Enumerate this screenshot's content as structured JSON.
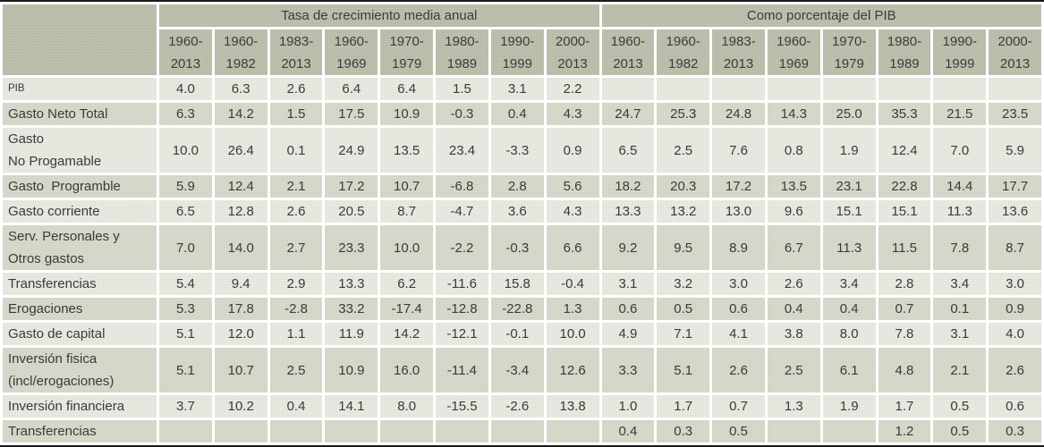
{
  "colors": {
    "header_background": "#b6b7a4",
    "row_light": "#ebece4",
    "row_dark": "#d9dbce",
    "grid_lines": "#ffffff",
    "outer_border": "#1a1a1a",
    "text": "#3a3a3a"
  },
  "chart_data": {
    "type": "table",
    "column_group_headers": [
      "Tasa de crecimiento media anual",
      "Como porcentaje del PIB"
    ],
    "period_columns": [
      {
        "line1": "1960-",
        "line2": "2013"
      },
      {
        "line1": "1960-",
        "line2": "1982"
      },
      {
        "line1": "1983-",
        "line2": "2013"
      },
      {
        "line1": "1960-",
        "line2": "1969"
      },
      {
        "line1": "1970-",
        "line2": "1979"
      },
      {
        "line1": "1980-",
        "line2": "1989"
      },
      {
        "line1": "1990-",
        "line2": "1999"
      },
      {
        "line1": "2000-",
        "line2": "2013"
      }
    ],
    "rows": [
      {
        "label_lines": [
          "PIB"
        ],
        "small_label": true,
        "growth": [
          "4.0",
          "6.3",
          "2.6",
          "6.4",
          "6.4",
          "1.5",
          "3.1",
          "2.2"
        ],
        "pct_pib": [
          "",
          "",
          "",
          "",
          "",
          "",
          "",
          ""
        ]
      },
      {
        "label_lines": [
          "Gasto Neto Total"
        ],
        "growth": [
          "6.3",
          "14.2",
          "1.5",
          "17.5",
          "10.9",
          "-0.3",
          "0.4",
          "4.3"
        ],
        "pct_pib": [
          "24.7",
          "25.3",
          "24.8",
          "14.3",
          "25.0",
          "35.3",
          "21.5",
          "23.5"
        ]
      },
      {
        "label_lines": [
          "Gasto",
          "No Progamable"
        ],
        "growth": [
          "10.0",
          "26.4",
          "0.1",
          "24.9",
          "13.5",
          "23.4",
          "-3.3",
          "0.9"
        ],
        "pct_pib": [
          "6.5",
          "2.5",
          "7.6",
          "0.8",
          "1.9",
          "12.4",
          "7.0",
          "5.9"
        ]
      },
      {
        "label_lines": [
          "Gasto  Programble"
        ],
        "growth": [
          "5.9",
          "12.4",
          "2.1",
          "17.2",
          "10.7",
          "-6.8",
          "2.8",
          "5.6"
        ],
        "pct_pib": [
          "18.2",
          "20.3",
          "17.2",
          "13.5",
          "23.1",
          "22.8",
          "14.4",
          "17.7"
        ]
      },
      {
        "label_lines": [
          "Gasto corriente"
        ],
        "growth": [
          "6.5",
          "12.8",
          "2.6",
          "20.5",
          "8.7",
          "-4.7",
          "3.6",
          "4.3"
        ],
        "pct_pib": [
          "13.3",
          "13.2",
          "13.0",
          "9.6",
          "15.1",
          "15.1",
          "11.3",
          "13.6"
        ]
      },
      {
        "label_lines": [
          "Serv. Personales y",
          "Otros gastos"
        ],
        "growth": [
          "7.0",
          "14.0",
          "2.7",
          "23.3",
          "10.0",
          "-2.2",
          "-0.3",
          "6.6"
        ],
        "pct_pib": [
          "9.2",
          "9.5",
          "8.9",
          "6.7",
          "11.3",
          "11.5",
          "7.8",
          "8.7"
        ]
      },
      {
        "label_lines": [
          "Transferencias"
        ],
        "growth": [
          "5.4",
          "9.4",
          "2.9",
          "13.3",
          "6.2",
          "-11.6",
          "15.8",
          "-0.4"
        ],
        "pct_pib": [
          "3.1",
          "3.2",
          "3.0",
          "2.6",
          "3.4",
          "2.8",
          "3.4",
          "3.0"
        ]
      },
      {
        "label_lines": [
          "Erogaciones"
        ],
        "growth": [
          "5.3",
          "17.8",
          "-2.8",
          "33.2",
          "-17.4",
          "-12.8",
          "-22.8",
          "1.3"
        ],
        "pct_pib": [
          "0.6",
          "0.5",
          "0.6",
          "0.4",
          "0.4",
          "0.7",
          "0.1",
          "0.9"
        ]
      },
      {
        "label_lines": [
          "Gasto de capital"
        ],
        "growth": [
          "5.1",
          "12.0",
          "1.1",
          "11.9",
          "14.2",
          "-12.1",
          "-0.1",
          "10.0"
        ],
        "pct_pib": [
          "4.9",
          "7.1",
          "4.1",
          "3.8",
          "8.0",
          "7.8",
          "3.1",
          "4.0"
        ]
      },
      {
        "label_lines": [
          "Inversión fisica",
          "(incl/erogaciones)"
        ],
        "growth": [
          "5.1",
          "10.7",
          "2.5",
          "10.9",
          "16.0",
          "-11.4",
          "-3.4",
          "12.6"
        ],
        "pct_pib": [
          "3.3",
          "5.1",
          "2.6",
          "2.5",
          "6.1",
          "4.8",
          "2.1",
          "2.6"
        ]
      },
      {
        "label_lines": [
          "Inversión financiera"
        ],
        "growth": [
          "3.7",
          "10.2",
          "0.4",
          "14.1",
          "8.0",
          "-15.5",
          "-2.6",
          "13.8"
        ],
        "pct_pib": [
          "1.0",
          "1.7",
          "0.7",
          "1.3",
          "1.9",
          "1.7",
          "0.5",
          "0.6"
        ]
      },
      {
        "label_lines": [
          "Transferencias"
        ],
        "growth": [
          "",
          "",
          "",
          "",
          "",
          "",
          "",
          ""
        ],
        "pct_pib": [
          "0.4",
          "0.3",
          "0.5",
          "",
          "",
          "1.2",
          "0.5",
          "0.3"
        ]
      }
    ]
  }
}
